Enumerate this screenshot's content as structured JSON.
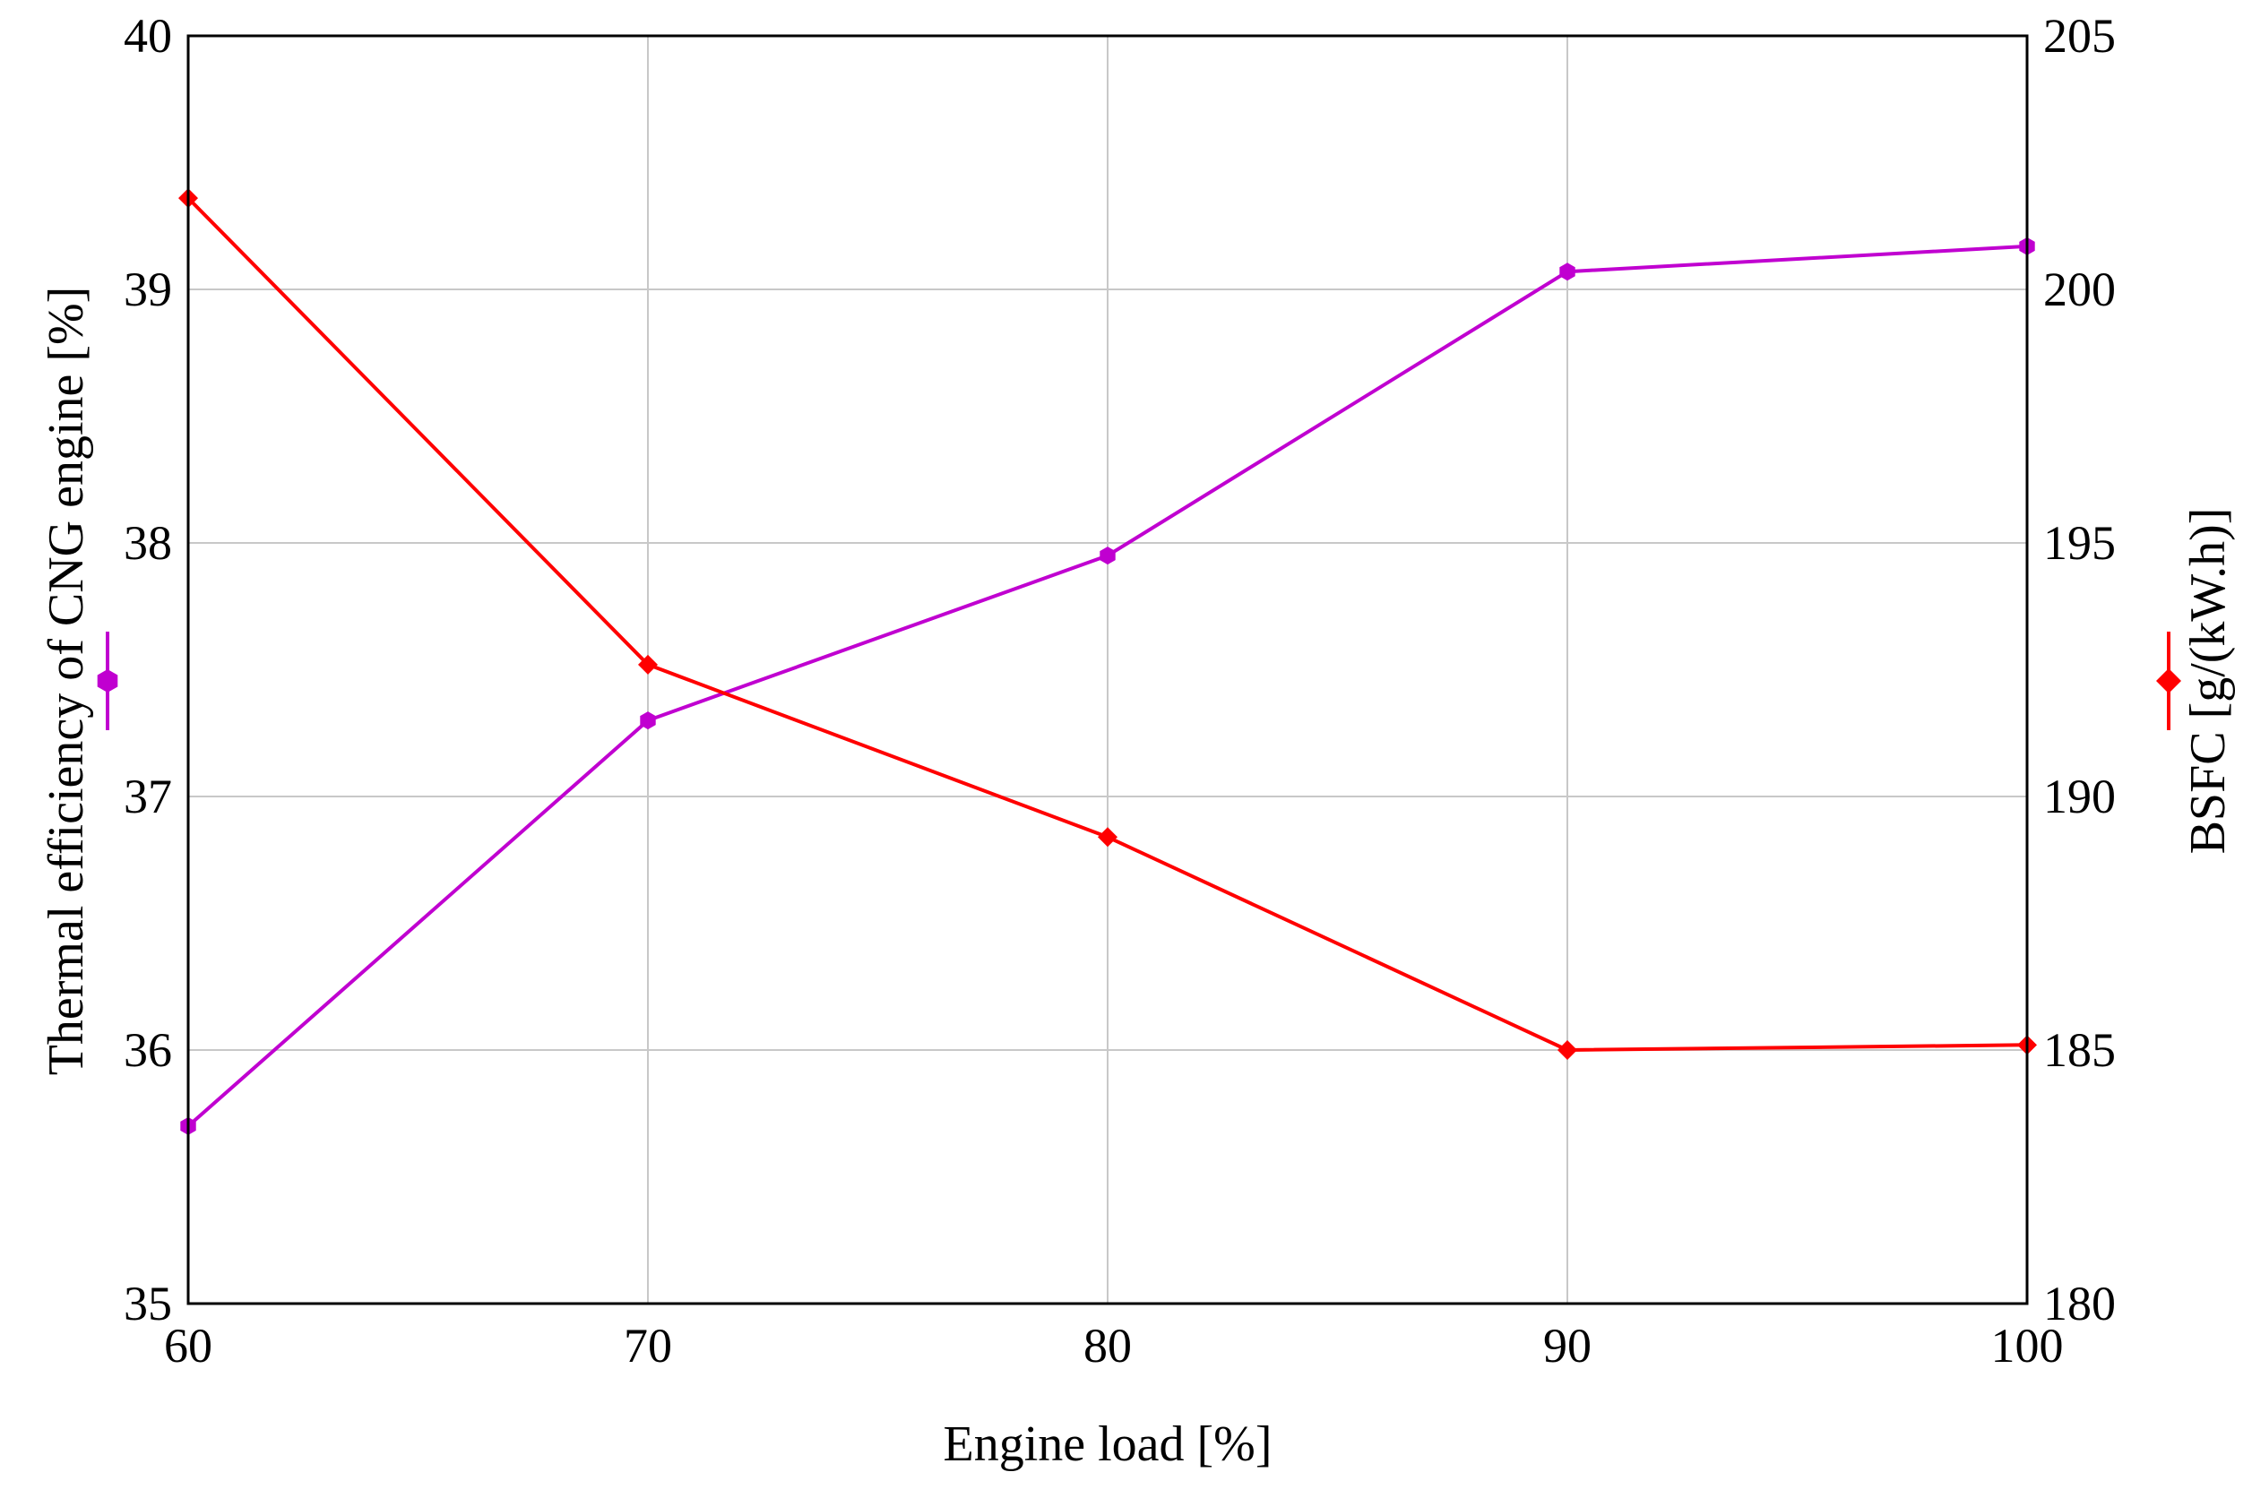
{
  "chart_data": {
    "type": "line",
    "title": "",
    "xlabel": "Engine load [%]",
    "ylabel_left": "Thermal efficiency of CNG engine [%]",
    "ylabel_right": "BSFC [g/(kW.h)]",
    "grid": true,
    "x": [
      60,
      70,
      80,
      90,
      100
    ],
    "xlim": [
      60,
      100
    ],
    "xticks": [
      60,
      70,
      80,
      90,
      100
    ],
    "ylim_left": [
      35,
      40
    ],
    "yticks_left": [
      35,
      36,
      37,
      38,
      39,
      40
    ],
    "ylim_right": [
      180,
      205
    ],
    "yticks_right": [
      180,
      185,
      190,
      195,
      200,
      205
    ],
    "series": [
      {
        "name": "Thermal efficiency of CNG engine",
        "axis": "left",
        "color": "#c000d0",
        "marker": "hexagon",
        "values": [
          35.7,
          37.3,
          37.95,
          39.07,
          39.17
        ]
      },
      {
        "name": "BSFC",
        "axis": "right",
        "color": "#ff0000",
        "marker": "diamond",
        "values": [
          201.8,
          192.6,
          189.2,
          185.0,
          185.1
        ]
      }
    ]
  }
}
